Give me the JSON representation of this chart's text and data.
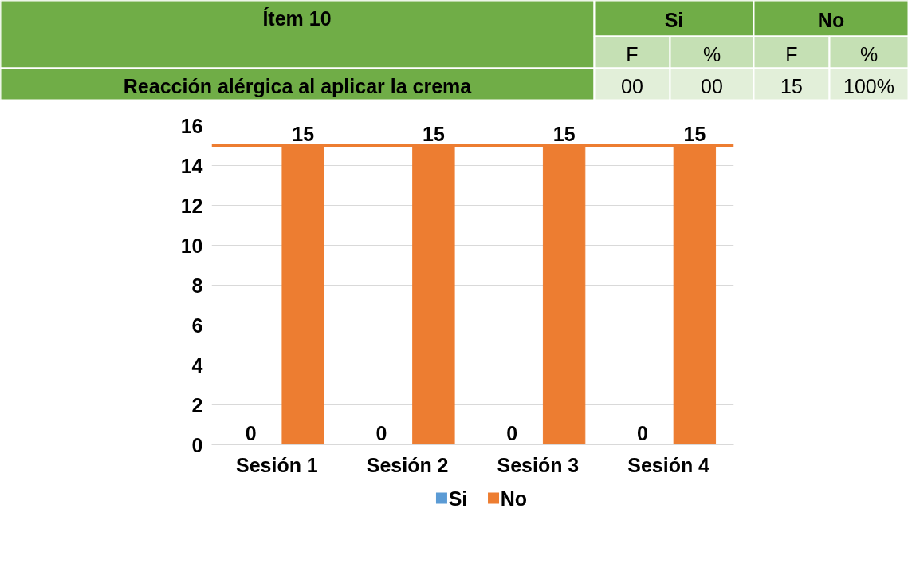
{
  "chart_data": [
    {
      "type": "other",
      "title": "Ítem 10",
      "annotations": [
        "Si",
        "No",
        "F",
        "%",
        "F",
        "%",
        "Reacción alérgica al aplicar la crema",
        "00",
        "00",
        "15",
        "100%"
      ]
    },
    {
      "type": "bar",
      "categories": [
        "Sesión 1",
        "Sesión 2",
        "Sesión 3",
        "Sesión 4"
      ],
      "series": [
        {
          "name": "Si",
          "color": "#5b9bd5",
          "values": [
            0,
            0,
            0,
            0
          ]
        },
        {
          "name": "No",
          "color": "#ed7d31",
          "values": [
            15,
            15,
            15,
            15
          ]
        }
      ],
      "ylim": [
        0,
        16
      ],
      "yticks": [
        0,
        2,
        4,
        6,
        8,
        10,
        12,
        14,
        16
      ],
      "grid": "y",
      "legend": "bottom",
      "data_labels": true,
      "ref_lines": [
        {
          "axis": "y",
          "value": 15,
          "color": "#ed7d31"
        }
      ]
    }
  ]
}
